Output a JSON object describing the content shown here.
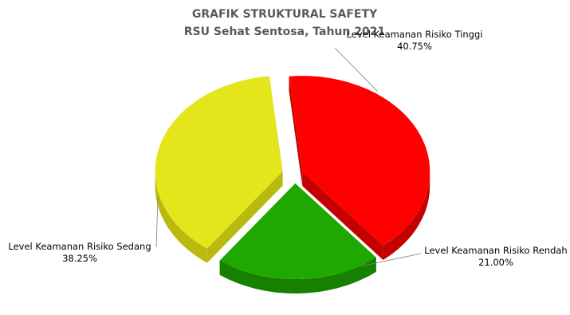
{
  "chart_data": {
    "type": "pie",
    "title": "GRAFIK STRUKTURAL SAFETY",
    "subtitle": "RSU Sehat Sentosa, Tahun 2021",
    "slices": [
      {
        "name": "Level Keamanan Risiko Tinggi",
        "value": 40.75,
        "value_label": "40.75%",
        "color": "#ff0000",
        "side_color": "#c40000"
      },
      {
        "name": "Level Keamanan Risiko Rendah",
        "value": 21.0,
        "value_label": "21.00%",
        "color": "#1fa800",
        "side_color": "#168000"
      },
      {
        "name": "Level Keamanan Risiko Sedang",
        "value": 38.25,
        "value_label": "38.25%",
        "color": "#e5e51c",
        "side_color": "#b9b90e"
      }
    ]
  }
}
